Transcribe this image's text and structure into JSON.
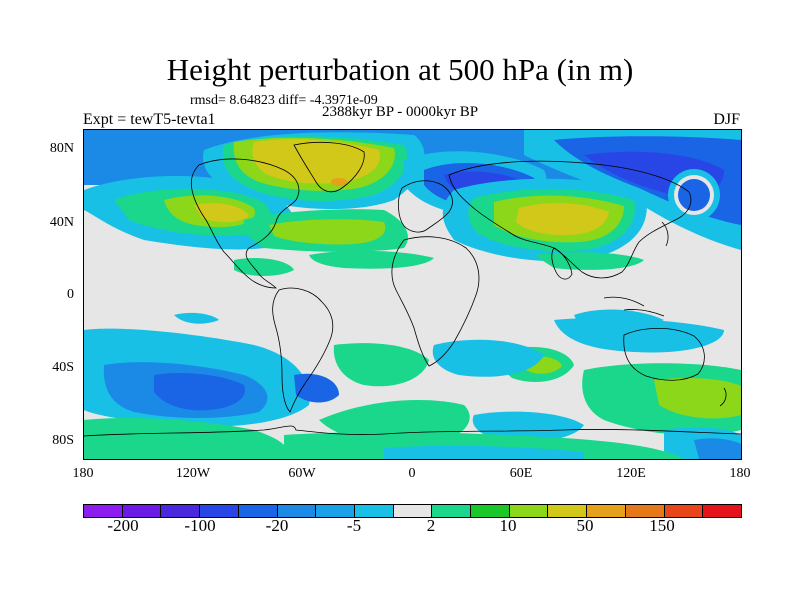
{
  "title": "Height perturbation at 500 hPa (in m)",
  "stats_text": "rmsd= 8.64823 diff= -4.3971e-09",
  "period_text": "2388kyr BP - 0000kyr BP",
  "experiment_text": "Expt = tewT5-tevta1",
  "season": "DJF",
  "map": {
    "projection": "cylindrical equidistant",
    "lon_range": [
      -180,
      180
    ],
    "lat_range": [
      -90,
      90
    ],
    "background_color": "#e6e6e6",
    "lat_labels": [
      "80N",
      "40N",
      "0",
      "40S",
      "80S"
    ],
    "lon_labels": [
      "180",
      "120W",
      "60W",
      "0",
      "60E",
      "120E",
      "180"
    ],
    "coastline_color": "#000000"
  },
  "colorbar": {
    "colors": [
      "#8c1cf0",
      "#6a1ce6",
      "#4a28dc",
      "#2846e6",
      "#1a64e6",
      "#1a8ae6",
      "#1aa0e6",
      "#19c0e6",
      "#e6e6e6",
      "#1ad78c",
      "#19c828",
      "#8cd71a",
      "#d2c81a",
      "#e6a01a",
      "#e6781a",
      "#e6461a",
      "#e6141a"
    ],
    "tick_labels": [
      "-200",
      "-100",
      "-20",
      "-5",
      "2",
      "10",
      "50",
      "150"
    ]
  }
}
